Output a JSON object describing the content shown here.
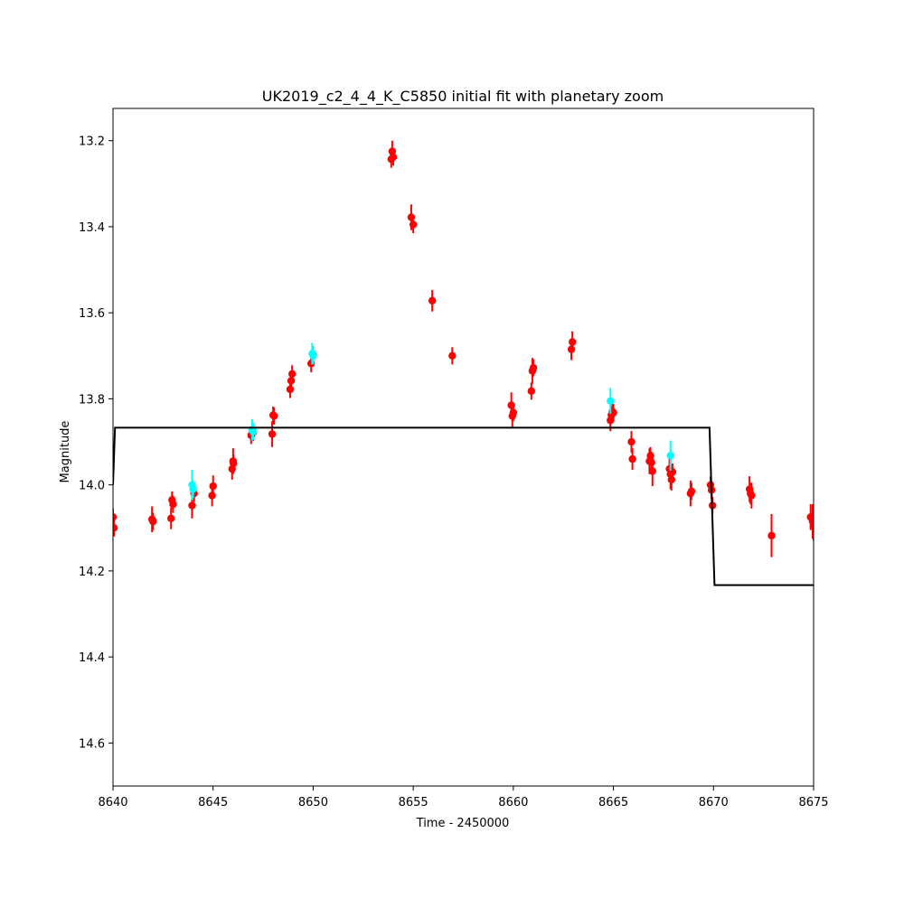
{
  "chart_data": {
    "type": "scatter",
    "title": "UK2019_c2_4_4_K_C5850 initial fit with planetary zoom",
    "xlabel": "Time - 2450000",
    "ylabel": "Magnitude",
    "xlim": [
      8640,
      8675
    ],
    "ylim": [
      14.7,
      13.125
    ],
    "y_inverted": true,
    "grid": false,
    "xticks": [
      8640,
      8645,
      8650,
      8655,
      8660,
      8665,
      8670,
      8675
    ],
    "yticks": [
      13.2,
      13.4,
      13.6,
      13.8,
      14.0,
      14.2,
      14.4,
      14.6
    ],
    "colors": {
      "red": "#ff0000",
      "cyan": "#00ffff",
      "model": "#000000"
    },
    "series": [
      {
        "color": "#ff0000",
        "marker": "circle",
        "points": [
          [
            8640.0,
            14.075,
            0.02
          ],
          [
            8640.05,
            14.1,
            0.02
          ],
          [
            8641.95,
            14.08,
            0.03
          ],
          [
            8642.0,
            14.085,
            0.02
          ],
          [
            8642.9,
            14.078,
            0.025
          ],
          [
            8642.95,
            14.035,
            0.02
          ],
          [
            8643.0,
            14.045,
            0.02
          ],
          [
            8643.95,
            14.048,
            0.03
          ],
          [
            8644.05,
            14.02,
            0.02
          ],
          [
            8644.95,
            14.025,
            0.025
          ],
          [
            8645.0,
            14.003,
            0.025
          ],
          [
            8645.95,
            13.963,
            0.025
          ],
          [
            8646.0,
            13.945,
            0.03
          ],
          [
            8646.02,
            13.95,
            0.02
          ],
          [
            8646.9,
            13.885,
            0.02
          ],
          [
            8647.0,
            13.878,
            0.02
          ],
          [
            8647.95,
            13.882,
            0.03
          ],
          [
            8648.0,
            13.838,
            0.02
          ],
          [
            8648.05,
            13.84,
            0.02
          ],
          [
            8648.85,
            13.778,
            0.02
          ],
          [
            8648.9,
            13.758,
            0.02
          ],
          [
            8648.95,
            13.742,
            0.02
          ],
          [
            8649.9,
            13.718,
            0.02
          ],
          [
            8650.0,
            13.698,
            0.02
          ],
          [
            8653.9,
            13.243,
            0.02
          ],
          [
            8653.95,
            13.225,
            0.025
          ],
          [
            8654.0,
            13.238,
            0.02
          ],
          [
            8654.9,
            13.378,
            0.03
          ],
          [
            8655.0,
            13.395,
            0.02
          ],
          [
            8655.95,
            13.572,
            0.025
          ],
          [
            8656.95,
            13.7,
            0.02
          ],
          [
            8659.9,
            13.815,
            0.03
          ],
          [
            8659.95,
            13.84,
            0.025
          ],
          [
            8660.0,
            13.832,
            0.02
          ],
          [
            8660.9,
            13.782,
            0.02
          ],
          [
            8660.95,
            13.735,
            0.03
          ],
          [
            8661.0,
            13.728,
            0.02
          ],
          [
            8662.9,
            13.685,
            0.025
          ],
          [
            8662.95,
            13.668,
            0.025
          ],
          [
            8664.85,
            13.85,
            0.025
          ],
          [
            8664.9,
            13.838,
            0.02
          ],
          [
            8664.95,
            13.83,
            0.02
          ],
          [
            8665.0,
            13.832,
            0.02
          ],
          [
            8665.9,
            13.9,
            0.025
          ],
          [
            8665.95,
            13.94,
            0.025
          ],
          [
            8666.8,
            13.945,
            0.03
          ],
          [
            8666.85,
            13.932,
            0.02
          ],
          [
            8666.9,
            13.948,
            0.025
          ],
          [
            8666.95,
            13.968,
            0.035
          ],
          [
            8667.8,
            13.963,
            0.03
          ],
          [
            8667.85,
            13.975,
            0.035
          ],
          [
            8667.9,
            13.988,
            0.025
          ],
          [
            8667.95,
            13.97,
            0.02
          ],
          [
            8668.85,
            14.02,
            0.03
          ],
          [
            8668.9,
            14.015,
            0.02
          ],
          [
            8669.85,
            14.0,
            0.02
          ],
          [
            8669.9,
            14.012,
            0.02
          ],
          [
            8669.95,
            14.048,
            0.02
          ],
          [
            8671.8,
            14.01,
            0.03
          ],
          [
            8671.85,
            14.02,
            0.025
          ],
          [
            8671.9,
            14.025,
            0.03
          ],
          [
            8672.9,
            14.118,
            0.05
          ],
          [
            8674.85,
            14.075,
            0.03
          ],
          [
            8674.95,
            14.085,
            0.04
          ],
          [
            8675.0,
            14.095,
            0.035
          ]
        ]
      },
      {
        "color": "#00ffff",
        "marker": "circle",
        "points": [
          [
            8643.95,
            14.0,
            0.035
          ],
          [
            8644.0,
            14.01,
            0.02
          ],
          [
            8646.95,
            13.872,
            0.025
          ],
          [
            8647.0,
            13.876,
            0.02
          ],
          [
            8649.95,
            13.695,
            0.025
          ],
          [
            8650.0,
            13.7,
            0.02
          ],
          [
            8664.85,
            13.805,
            0.03
          ],
          [
            8667.85,
            13.932,
            0.035
          ]
        ]
      }
    ],
    "model": {
      "color": "#000000",
      "points": [
        [
          8640.0,
          14.0
        ],
        [
          8640.1,
          13.867
        ],
        [
          8669.8,
          13.867
        ],
        [
          8670.05,
          14.233
        ],
        [
          8675.0,
          14.233
        ]
      ]
    }
  }
}
